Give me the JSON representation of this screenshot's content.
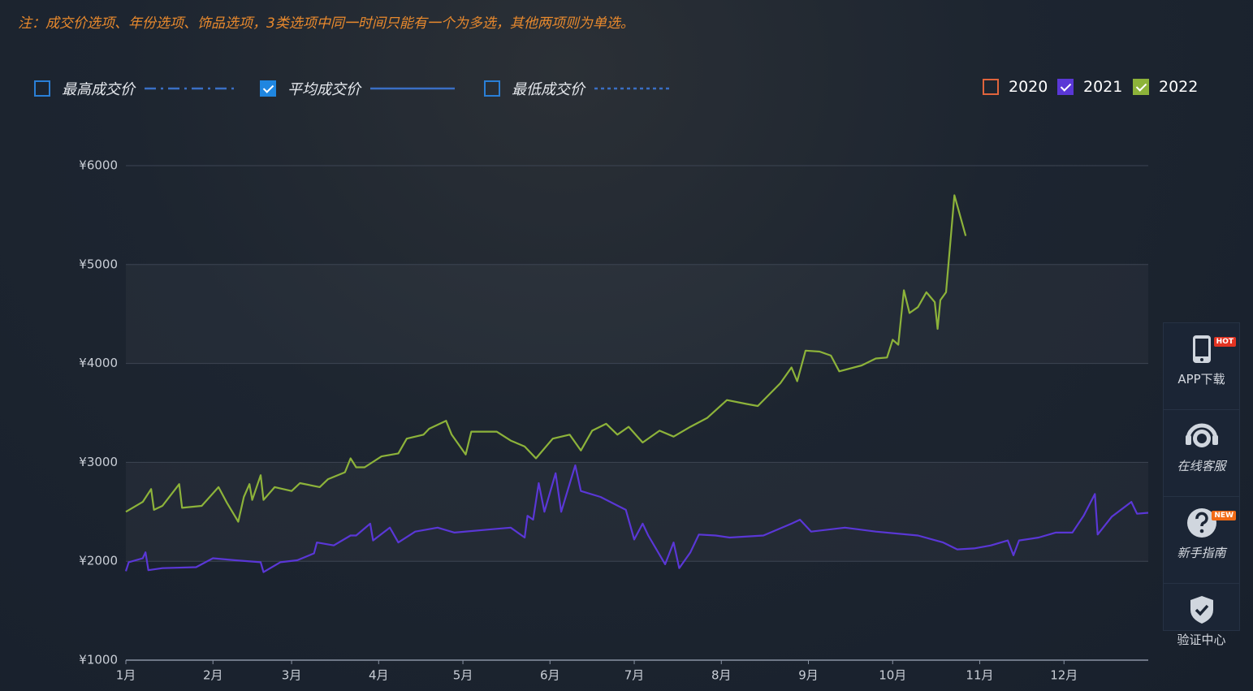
{
  "note": "注：成交价选项、年份选项、饰品选项，3类选项中同一时间只能有一个为多选，其他两项则为单选。",
  "price_options": [
    {
      "label": "最高成交价",
      "checked": false,
      "dash": "dash-dot"
    },
    {
      "label": "平均成交价",
      "checked": true,
      "dash": "solid"
    },
    {
      "label": "最低成交价",
      "checked": false,
      "dash": "dotted"
    }
  ],
  "sidebar": [
    {
      "label": "APP下载",
      "badge": "HOT"
    },
    {
      "label": "在线客服"
    },
    {
      "label": "新手指南",
      "badge": "NEW"
    },
    {
      "label": "验证中心"
    }
  ],
  "chart_data": {
    "type": "line",
    "xlim": [
      0,
      364
    ],
    "xticks": [
      {
        "value": 0,
        "label": "1月"
      },
      {
        "value": 31,
        "label": "2月"
      },
      {
        "value": 59,
        "label": "3月"
      },
      {
        "value": 90,
        "label": "4月"
      },
      {
        "value": 120,
        "label": "5月"
      },
      {
        "value": 151,
        "label": "6月"
      },
      {
        "value": 181,
        "label": "7月"
      },
      {
        "value": 212,
        "label": "8月"
      },
      {
        "value": 243,
        "label": "9月"
      },
      {
        "value": 273,
        "label": "10月"
      },
      {
        "value": 304,
        "label": "11月"
      },
      {
        "value": 334,
        "label": "12月"
      }
    ],
    "ylim": [
      1000,
      6000
    ],
    "yticks": [
      {
        "value": 1000,
        "label": "¥1000"
      },
      {
        "value": 2000,
        "label": "¥2000"
      },
      {
        "value": 3000,
        "label": "¥3000"
      },
      {
        "value": 4000,
        "label": "¥4000"
      },
      {
        "value": 5000,
        "label": "¥5000"
      },
      {
        "value": 6000,
        "label": "¥6000"
      }
    ],
    "grid": true,
    "series": [
      {
        "name": "2020",
        "color": "#e0643c",
        "checked": false
      },
      {
        "name": "2021",
        "color": "#5a37d6",
        "checked": true,
        "x": [
          0,
          1,
          6,
          7,
          8,
          13,
          25,
          31,
          39,
          48,
          49,
          55,
          61,
          67,
          68,
          74,
          80,
          82,
          87,
          88,
          94,
          97,
          103,
          111,
          117,
          129,
          137,
          142,
          143,
          145,
          147,
          149,
          153,
          155,
          160,
          162,
          169,
          178,
          181,
          184,
          186,
          192,
          195,
          197,
          201,
          204,
          210,
          215,
          227,
          237,
          240,
          244,
          256,
          267,
          282,
          291,
          296,
          302,
          308,
          314,
          316,
          318,
          325,
          331,
          337,
          341,
          345,
          346,
          351,
          358,
          360,
          364
        ],
        "values": [
          1900,
          1990,
          2030,
          2090,
          1910,
          1930,
          1940,
          2030,
          2010,
          1990,
          1890,
          1990,
          2010,
          2080,
          2190,
          2160,
          2260,
          2260,
          2380,
          2210,
          2340,
          2190,
          2300,
          2340,
          2290,
          2320,
          2340,
          2240,
          2460,
          2420,
          2790,
          2500,
          2890,
          2500,
          2970,
          2710,
          2650,
          2520,
          2220,
          2380,
          2260,
          1970,
          2190,
          1930,
          2090,
          2270,
          2260,
          2240,
          2260,
          2380,
          2420,
          2300,
          2340,
          2300,
          2260,
          2190,
          2120,
          2130,
          2160,
          2210,
          2060,
          2210,
          2240,
          2290,
          2290,
          2460,
          2680,
          2270,
          2450,
          2600,
          2480,
          2490
        ]
      },
      {
        "name": "2022",
        "color": "#8db33a",
        "checked": true,
        "x": [
          0,
          6,
          9,
          10,
          13,
          19,
          20,
          27,
          33,
          36,
          40,
          42,
          44,
          45,
          48,
          49,
          53,
          59,
          62,
          69,
          72,
          78,
          80,
          82,
          85,
          91,
          97,
          100,
          106,
          108,
          114,
          116,
          121,
          123,
          132,
          137,
          142,
          146,
          152,
          158,
          162,
          166,
          171,
          175,
          179,
          184,
          190,
          195,
          201,
          207,
          214,
          221,
          225,
          233,
          237,
          239,
          242,
          247,
          251,
          254,
          262,
          267,
          271,
          273,
          275,
          277,
          279,
          282,
          285,
          288,
          289,
          290,
          292,
          295,
          299
        ],
        "values": [
          2500,
          2600,
          2730,
          2520,
          2560,
          2780,
          2540,
          2560,
          2750,
          2590,
          2400,
          2650,
          2780,
          2620,
          2870,
          2620,
          2750,
          2710,
          2790,
          2750,
          2830,
          2900,
          3040,
          2950,
          2950,
          3060,
          3090,
          3240,
          3280,
          3340,
          3420,
          3280,
          3080,
          3310,
          3310,
          3220,
          3160,
          3040,
          3240,
          3280,
          3120,
          3320,
          3390,
          3280,
          3360,
          3200,
          3320,
          3260,
          3360,
          3450,
          3630,
          3590,
          3570,
          3800,
          3960,
          3820,
          4130,
          4120,
          4080,
          3920,
          3980,
          4050,
          4060,
          4240,
          4190,
          4740,
          4510,
          4570,
          4720,
          4620,
          4350,
          4640,
          4720,
          5700,
          5290
        ]
      }
    ]
  }
}
